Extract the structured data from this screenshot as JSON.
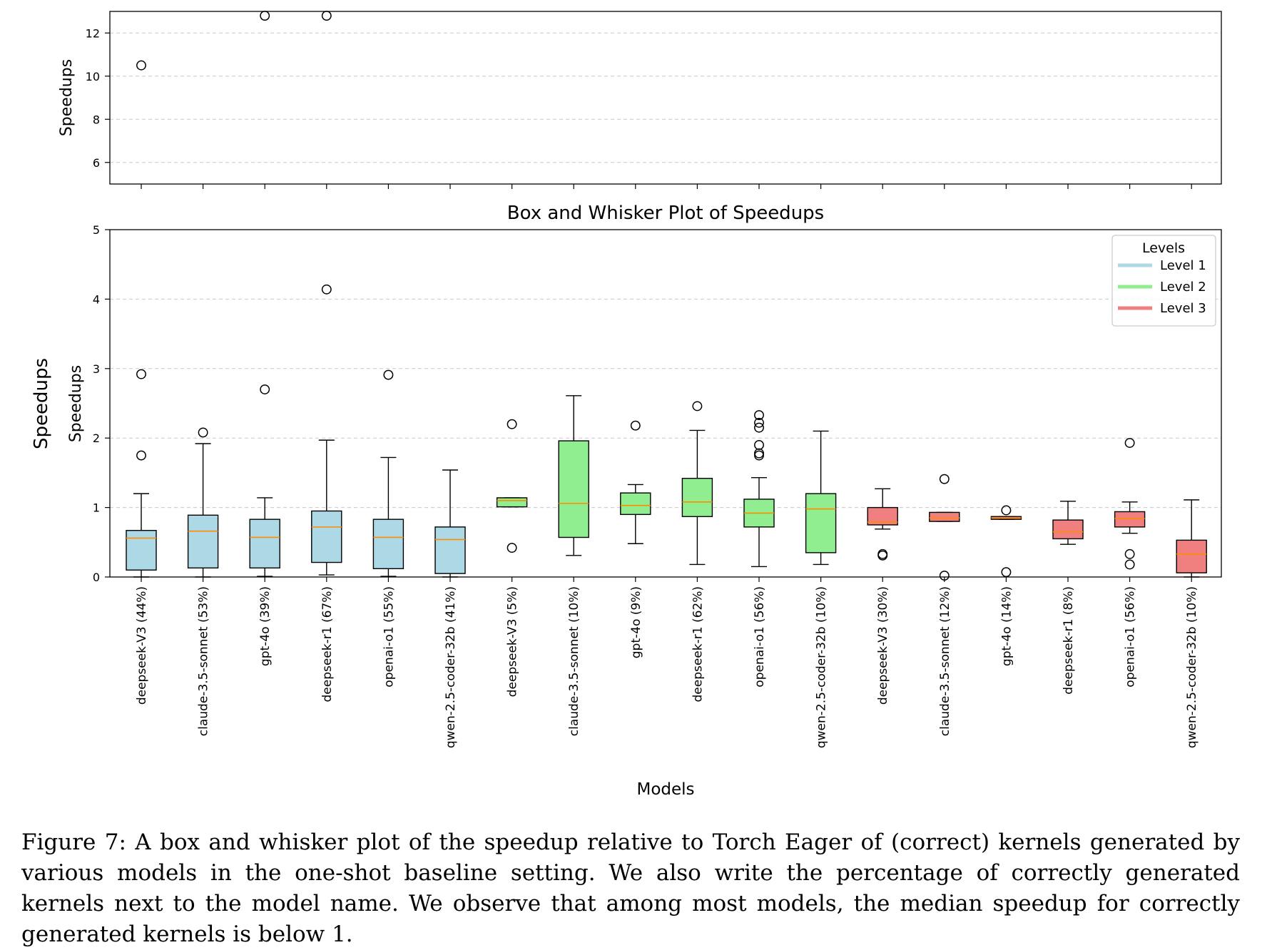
{
  "chart_data": {
    "type": "box",
    "title": "Box and Whisker Plot of Speedups",
    "xlabel": "Models",
    "ylabel": "Speedups",
    "outer_ylabel": "Speedups",
    "top_panel": {
      "ylabel": "Speedups",
      "ylim": [
        5.0,
        13.0
      ],
      "yticks": [
        6,
        8,
        10,
        12
      ]
    },
    "bottom_panel": {
      "ylabel": "Speedups",
      "ylim": [
        0,
        5
      ],
      "yticks": [
        0,
        1,
        2,
        3,
        4,
        5
      ]
    },
    "grid": "y-dashed",
    "legend": {
      "title": "Levels",
      "placement": "top-right",
      "entries": [
        {
          "label": "Level 1",
          "color": "#add8e6"
        },
        {
          "label": "Level 2",
          "color": "#90ee90"
        },
        {
          "label": "Level 3",
          "color": "#f08080"
        }
      ]
    },
    "median_color": "#ff8c00",
    "boxes": [
      {
        "label": "deepseek-V3 (44%)",
        "level": 1,
        "whislo": 0.0,
        "q1": 0.1,
        "median": 0.56,
        "q3": 0.67,
        "whishi": 1.2,
        "fliers": [
          1.75,
          2.92,
          10.5
        ]
      },
      {
        "label": "claude-3.5-sonnet (53%)",
        "level": 1,
        "whislo": 0.0,
        "q1": 0.13,
        "median": 0.66,
        "q3": 0.89,
        "whishi": 1.92,
        "fliers": [
          2.08
        ]
      },
      {
        "label": "gpt-4o (39%)",
        "level": 1,
        "whislo": 0.01,
        "q1": 0.13,
        "median": 0.57,
        "q3": 0.83,
        "whishi": 1.14,
        "fliers": [
          2.7,
          12.8
        ]
      },
      {
        "label": "deepseek-r1 (67%)",
        "level": 1,
        "whislo": 0.03,
        "q1": 0.21,
        "median": 0.72,
        "q3": 0.95,
        "whishi": 1.97,
        "fliers": [
          4.14,
          12.8
        ]
      },
      {
        "label": "openai-o1 (55%)",
        "level": 1,
        "whislo": 0.01,
        "q1": 0.12,
        "median": 0.57,
        "q3": 0.83,
        "whishi": 1.72,
        "fliers": [
          2.91
        ]
      },
      {
        "label": "qwen-2.5-coder-32b (41%)",
        "level": 1,
        "whislo": 0.0,
        "q1": 0.05,
        "median": 0.54,
        "q3": 0.72,
        "whishi": 1.54,
        "fliers": []
      },
      {
        "label": "deepseek-V3 (5%)",
        "level": 2,
        "whislo": 1.01,
        "q1": 1.01,
        "median": 1.1,
        "q3": 1.14,
        "whishi": 1.14,
        "fliers": [
          0.42,
          2.2
        ]
      },
      {
        "label": "claude-3.5-sonnet (10%)",
        "level": 2,
        "whislo": 0.31,
        "q1": 0.57,
        "median": 1.06,
        "q3": 1.96,
        "whishi": 2.61,
        "fliers": []
      },
      {
        "label": "gpt-4o (9%)",
        "level": 2,
        "whislo": 0.48,
        "q1": 0.9,
        "median": 1.03,
        "q3": 1.21,
        "whishi": 1.33,
        "fliers": [
          2.18
        ]
      },
      {
        "label": "deepseek-r1 (62%)",
        "level": 2,
        "whislo": 0.18,
        "q1": 0.87,
        "median": 1.08,
        "q3": 1.42,
        "whishi": 2.11,
        "fliers": [
          2.46
        ]
      },
      {
        "label": "openai-o1 (56%)",
        "level": 2,
        "whislo": 0.15,
        "q1": 0.72,
        "median": 0.92,
        "q3": 1.12,
        "whishi": 1.43,
        "fliers": [
          1.75,
          1.78,
          1.9,
          2.15,
          2.22,
          2.33
        ]
      },
      {
        "label": "qwen-2.5-coder-32b (10%)",
        "level": 2,
        "whislo": 0.18,
        "q1": 0.35,
        "median": 0.98,
        "q3": 1.2,
        "whishi": 2.1,
        "fliers": []
      },
      {
        "label": "deepseek-V3 (30%)",
        "level": 3,
        "whislo": 0.69,
        "q1": 0.75,
        "median": 0.79,
        "q3": 1.0,
        "whishi": 1.27,
        "fliers": [
          0.31,
          0.33
        ]
      },
      {
        "label": "claude-3.5-sonnet (12%)",
        "level": 3,
        "whislo": 0.8,
        "q1": 0.8,
        "median": 0.85,
        "q3": 0.93,
        "whishi": 0.93,
        "fliers": [
          0.02,
          1.41
        ]
      },
      {
        "label": "gpt-4o (14%)",
        "level": 3,
        "whislo": 0.83,
        "q1": 0.83,
        "median": 0.85,
        "q3": 0.87,
        "whishi": 0.87,
        "fliers": [
          0.07,
          0.96
        ]
      },
      {
        "label": "deepseek-r1 (8%)",
        "level": 3,
        "whislo": 0.47,
        "q1": 0.55,
        "median": 0.65,
        "q3": 0.82,
        "whishi": 1.09,
        "fliers": []
      },
      {
        "label": "openai-o1 (56%)",
        "level": 3,
        "whislo": 0.63,
        "q1": 0.72,
        "median": 0.84,
        "q3": 0.94,
        "whishi": 1.08,
        "fliers": [
          0.18,
          0.33,
          1.93
        ]
      },
      {
        "label": "qwen-2.5-coder-32b (10%)",
        "level": 3,
        "whislo": 0.0,
        "q1": 0.06,
        "median": 0.33,
        "q3": 0.53,
        "whishi": 1.11,
        "fliers": []
      }
    ]
  },
  "caption": "Figure 7: A box and whisker plot of the speedup relative to Torch Eager of (correct) kernels generated by various models in the one-shot baseline setting. We also write the percentage of correctly generated kernels next to the model name. We observe that among most models, the median speedup for correctly generated kernels is below 1."
}
